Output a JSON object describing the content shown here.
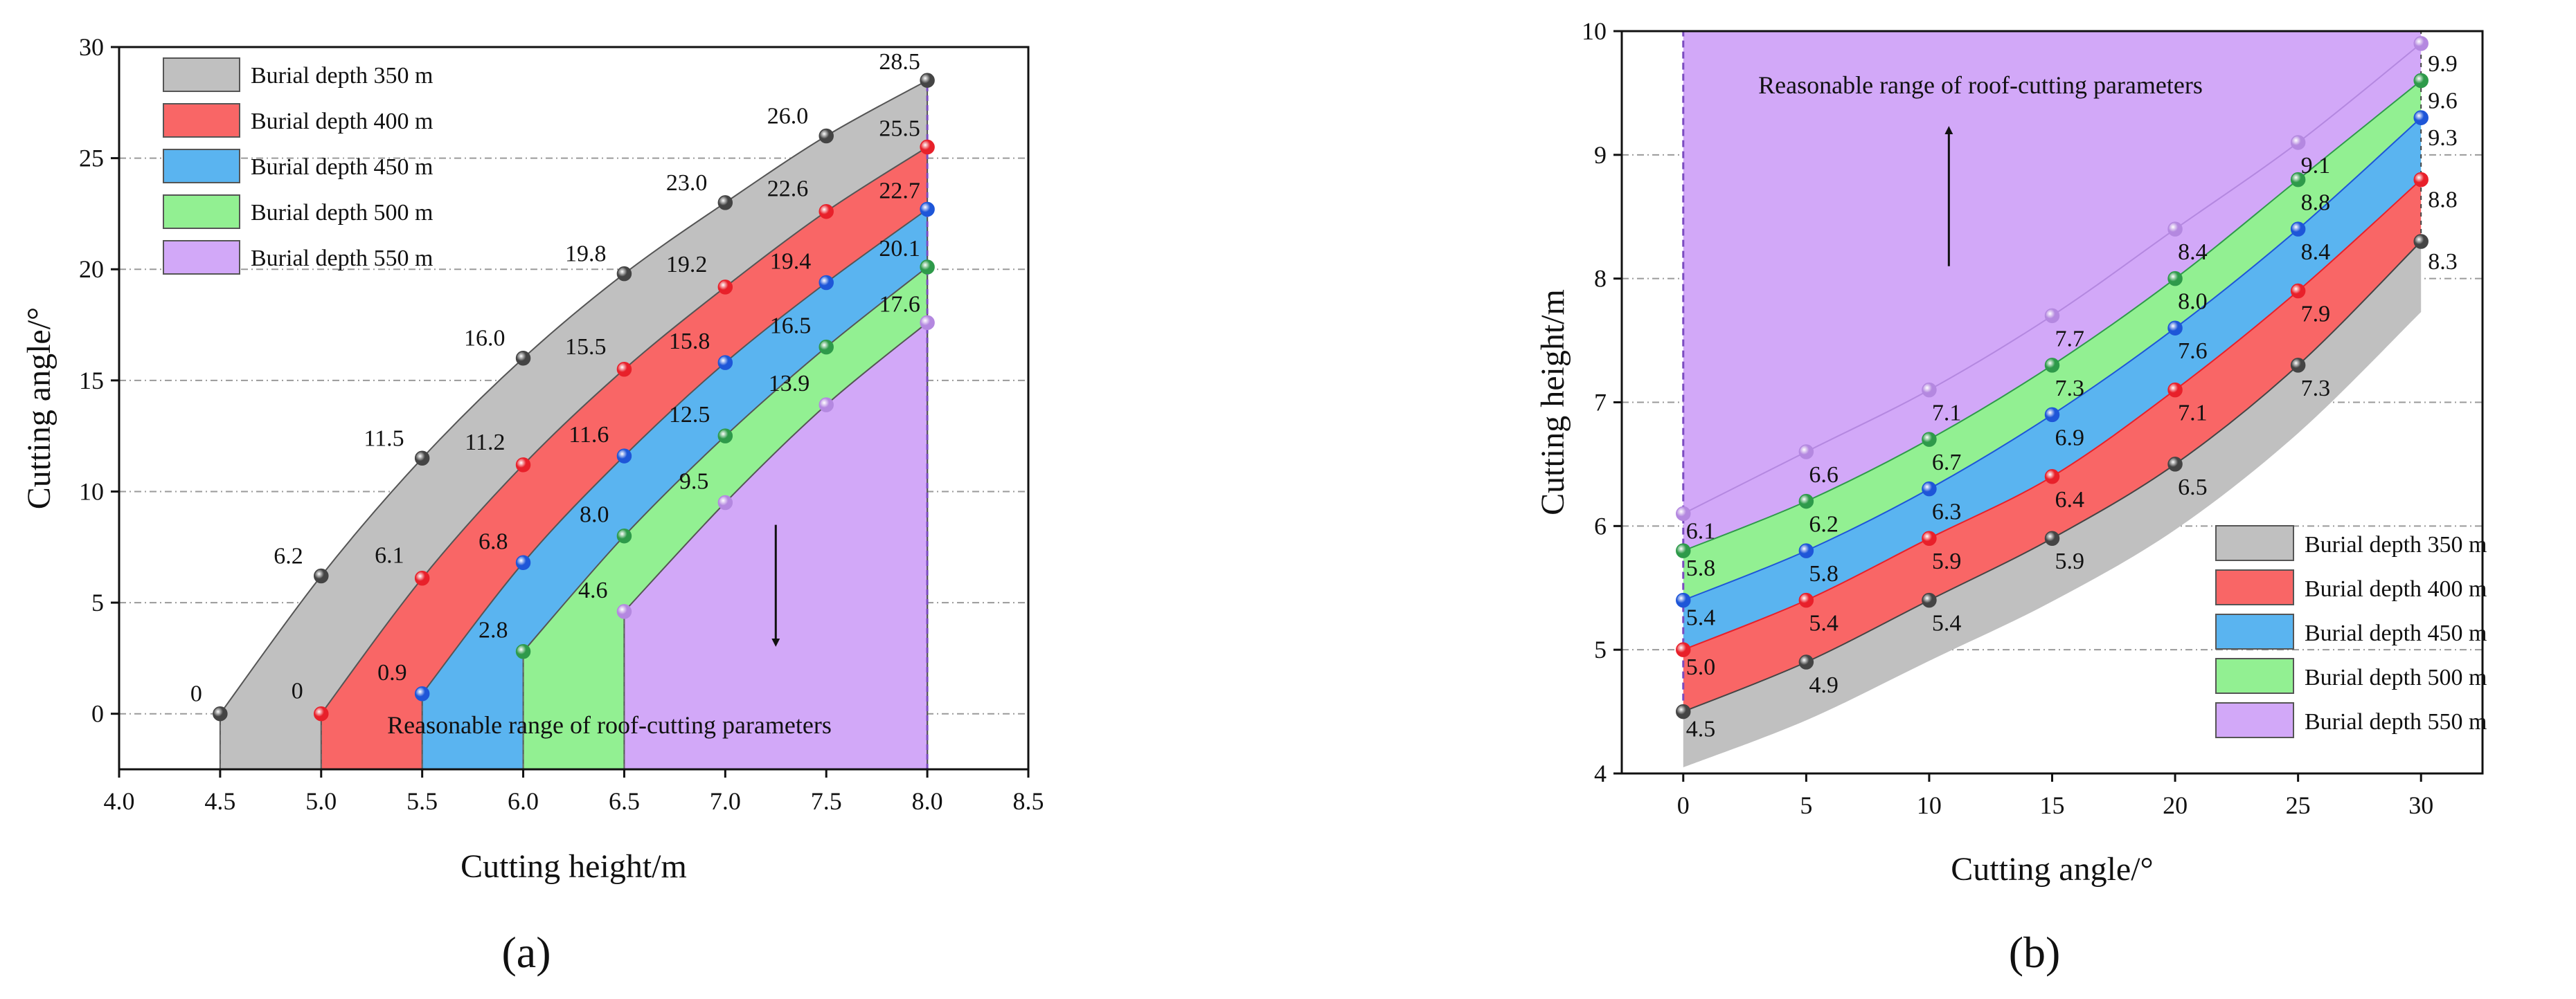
{
  "legend_labels": [
    "Burial depth 350 m",
    "Burial depth 400 m",
    "Burial depth 450 m",
    "Burial depth 500 m",
    "Burial depth 550 m"
  ],
  "colors": {
    "fills": [
      "#c0c0c0",
      "#f96666",
      "#5ab4f0",
      "#92f092",
      "#d2a8f8"
    ],
    "markers": [
      "#444444",
      "#e8202a",
      "#1e56d8",
      "#2e9a4a",
      "#b488e0"
    ],
    "border": "#555555"
  },
  "chart_data": [
    {
      "id": "a",
      "type": "area",
      "panel_label": "(a)",
      "xlabel": "Cutting height/m",
      "ylabel": "Cutting angle/°",
      "xlim": [
        4.0,
        8.5
      ],
      "ylim": [
        -2.5,
        30
      ],
      "xticks": [
        "4.0",
        "4.5",
        "5.0",
        "5.5",
        "6.0",
        "6.5",
        "7.0",
        "7.5",
        "8.0",
        "8.5"
      ],
      "yticks": [
        "0",
        "5",
        "10",
        "15",
        "20",
        "25",
        "30"
      ],
      "annotation": "Reasonable range of roof-cutting parameters",
      "series": [
        {
          "name": "Burial depth 350 m",
          "points": [
            [
              4.5,
              0
            ],
            [
              5.0,
              6.2
            ],
            [
              5.5,
              11.5
            ],
            [
              6.0,
              16.0
            ],
            [
              6.5,
              19.8
            ],
            [
              7.0,
              23.0
            ],
            [
              7.5,
              26.0
            ],
            [
              8.0,
              28.5
            ]
          ],
          "labels": [
            "0",
            "6.2",
            "11.5",
            "16.0",
            "19.8",
            "23.0",
            "26.0",
            "28.5"
          ]
        },
        {
          "name": "Burial depth 400 m",
          "points": [
            [
              5.0,
              0
            ],
            [
              5.5,
              6.1
            ],
            [
              6.0,
              11.2
            ],
            [
              6.5,
              15.5
            ],
            [
              7.0,
              19.2
            ],
            [
              7.5,
              22.6
            ],
            [
              8.0,
              25.5
            ]
          ],
          "labels": [
            "0",
            "6.1",
            "11.2",
            "15.5",
            "19.2",
            "22.6",
            "25.5"
          ]
        },
        {
          "name": "Burial depth 450 m",
          "points": [
            [
              5.5,
              0.9
            ],
            [
              6.0,
              6.8
            ],
            [
              6.5,
              11.6
            ],
            [
              7.0,
              15.8
            ],
            [
              7.5,
              19.4
            ],
            [
              8.0,
              22.7
            ]
          ],
          "labels": [
            "0.9",
            "6.8",
            "11.6",
            "15.8",
            "19.4",
            "22.7"
          ]
        },
        {
          "name": "Burial depth 500 m",
          "points": [
            [
              6.0,
              2.8
            ],
            [
              6.5,
              8.0
            ],
            [
              7.0,
              12.5
            ],
            [
              7.5,
              16.5
            ],
            [
              8.0,
              20.1
            ]
          ],
          "labels": [
            "2.8",
            "8.0",
            "12.5",
            "16.5",
            "20.1"
          ]
        },
        {
          "name": "Burial depth 550 m",
          "points": [
            [
              6.5,
              4.6
            ],
            [
              7.0,
              9.5
            ],
            [
              7.5,
              13.9
            ],
            [
              8.0,
              17.6
            ]
          ],
          "labels": [
            "4.6",
            "9.5",
            "13.9",
            "17.6"
          ]
        }
      ]
    },
    {
      "id": "b",
      "type": "area",
      "panel_label": "(b)",
      "xlabel": "Cutting angle/°",
      "ylabel": "Cutting height/m",
      "xlim": [
        -2.5,
        32.5
      ],
      "ylim": [
        4,
        10
      ],
      "xticks": [
        "0",
        "5",
        "10",
        "15",
        "20",
        "25",
        "30"
      ],
      "yticks": [
        "4",
        "5",
        "6",
        "7",
        "8",
        "9",
        "10"
      ],
      "annotation": "Reasonable range of roof-cutting parameters",
      "x": [
        0,
        5,
        10,
        15,
        20,
        25,
        30
      ],
      "series": [
        {
          "name": "Burial depth 350 m",
          "values": [
            4.5,
            4.9,
            5.4,
            5.9,
            6.5,
            7.3,
            8.3
          ],
          "labels": [
            "4.5",
            "4.9",
            "5.4",
            "5.9",
            "6.5",
            "7.3",
            "8.3"
          ]
        },
        {
          "name": "Burial depth 400 m",
          "values": [
            5.0,
            5.4,
            5.9,
            6.4,
            7.1,
            7.9,
            8.8
          ],
          "labels": [
            "5.0",
            "5.4",
            "5.9",
            "6.4",
            "7.1",
            "7.9",
            "8.8"
          ]
        },
        {
          "name": "Burial depth 450 m",
          "values": [
            5.4,
            5.8,
            6.3,
            6.9,
            7.6,
            8.4,
            9.3
          ],
          "labels": [
            "5.4",
            "5.8",
            "6.3",
            "6.9",
            "7.6",
            "8.4",
            "9.3"
          ]
        },
        {
          "name": "Burial depth 500 m",
          "values": [
            5.8,
            6.2,
            6.7,
            7.3,
            8.0,
            8.8,
            9.6
          ],
          "labels": [
            "5.8",
            "6.2",
            "6.7",
            "7.3",
            "8.0",
            "8.8",
            "9.6"
          ]
        },
        {
          "name": "Burial depth 550 m",
          "values": [
            6.1,
            6.6,
            7.1,
            7.7,
            8.4,
            9.1,
            9.9
          ],
          "labels": [
            "6.1",
            "6.6",
            "7.1",
            "7.7",
            "8.4",
            "9.1",
            "9.9"
          ]
        }
      ]
    }
  ]
}
